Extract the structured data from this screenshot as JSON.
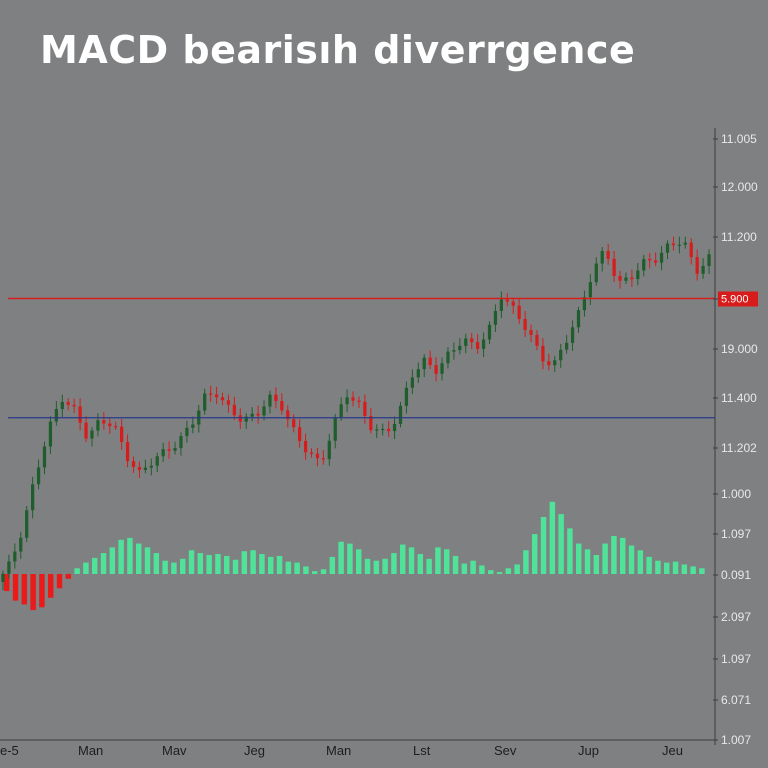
{
  "chart_data": {
    "type": "candlestick",
    "title": "MACD bearisıh diverrgence",
    "price_axis_labels": [
      "11.005",
      "12.000",
      "11.200",
      "1.000",
      "19.000",
      "11.400",
      "11.202",
      "1.000",
      "1.097",
      "0.091",
      "2.097",
      "1.097",
      "6.071",
      "1.007"
    ],
    "x_tick_labels": [
      "e-5",
      "Man",
      "Mav",
      "Jeg",
      "Man",
      "Lst",
      "Sev",
      "Jup",
      "Jeu"
    ],
    "resistance_label": "5.900",
    "colors": {
      "background": "#7f8082",
      "up": "#1f5e2c",
      "down": "#d81c1c",
      "resistance": "#d81c1c",
      "baseline": "#2a3a8a",
      "histogram_positive": "#4fe39a",
      "histogram_negative": "#e81a1a"
    },
    "price_range": [
      0,
      100
    ],
    "resistance_level": 67.0,
    "baseline_level": 40.5,
    "price_path": [
      4,
      8,
      16,
      28,
      38,
      45,
      42,
      36,
      40,
      39,
      32,
      28,
      31,
      33,
      35,
      39,
      45,
      46,
      42,
      40,
      41,
      45,
      43,
      37,
      33,
      30,
      39,
      46,
      43,
      38,
      37,
      41,
      50,
      53,
      51,
      55,
      58,
      56,
      60,
      68,
      64,
      60,
      54,
      52,
      58,
      64,
      73,
      78,
      70,
      72,
      75,
      76,
      79,
      80,
      73,
      76
    ],
    "histogram": [
      -1.8,
      -2.8,
      -3.2,
      -3.8,
      -3.5,
      -2.5,
      -1.5,
      -0.5,
      0.6,
      1.2,
      1.7,
      2.2,
      2.8,
      3.6,
      3.8,
      3.2,
      2.8,
      2.2,
      1.4,
      1.2,
      1.6,
      2.5,
      2.2,
      2.0,
      2.1,
      1.9,
      1.5,
      2.4,
      2.5,
      2.1,
      1.8,
      1.9,
      1.3,
      1.2,
      0.8,
      0.3,
      0.5,
      1.8,
      3.4,
      3.2,
      2.6,
      1.6,
      1.4,
      1.6,
      2.2,
      3.1,
      2.8,
      2.1,
      1.6,
      2.8,
      2.6,
      1.9,
      1.1,
      1.4,
      0.9,
      0.4,
      0.2,
      0.6,
      1.0,
      2.5,
      4.2,
      6.0,
      7.6,
      6.3,
      4.8,
      3.2,
      2.6,
      2.0,
      3.2,
      4.0,
      3.8,
      3.0,
      2.5,
      1.8,
      1.4,
      1.2,
      1.3,
      1.0,
      0.8,
      0.6
    ],
    "candle_count": 120
  }
}
